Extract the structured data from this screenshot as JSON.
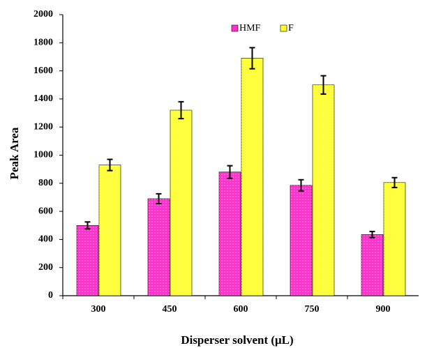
{
  "chart_data": {
    "type": "bar",
    "x_label": "Disperser solvent (μL)",
    "y_label": "Peak Area",
    "categories": [
      "300",
      "450",
      "600",
      "750",
      "900"
    ],
    "series": [
      {
        "name": "HMF",
        "color": "#ff33cc",
        "values": [
          500,
          690,
          880,
          785,
          435
        ],
        "errors": [
          25,
          35,
          45,
          40,
          22
        ]
      },
      {
        "name": "F",
        "color": "#ffff33",
        "values": [
          930,
          1320,
          1690,
          1500,
          805
        ],
        "errors": [
          40,
          60,
          75,
          65,
          35
        ]
      }
    ],
    "ylim": [
      0,
      2000
    ],
    "yticks": [
      0,
      200,
      400,
      600,
      800,
      1000,
      1200,
      1400,
      1600,
      1800,
      2000
    ],
    "grid": false,
    "legend": "top"
  }
}
